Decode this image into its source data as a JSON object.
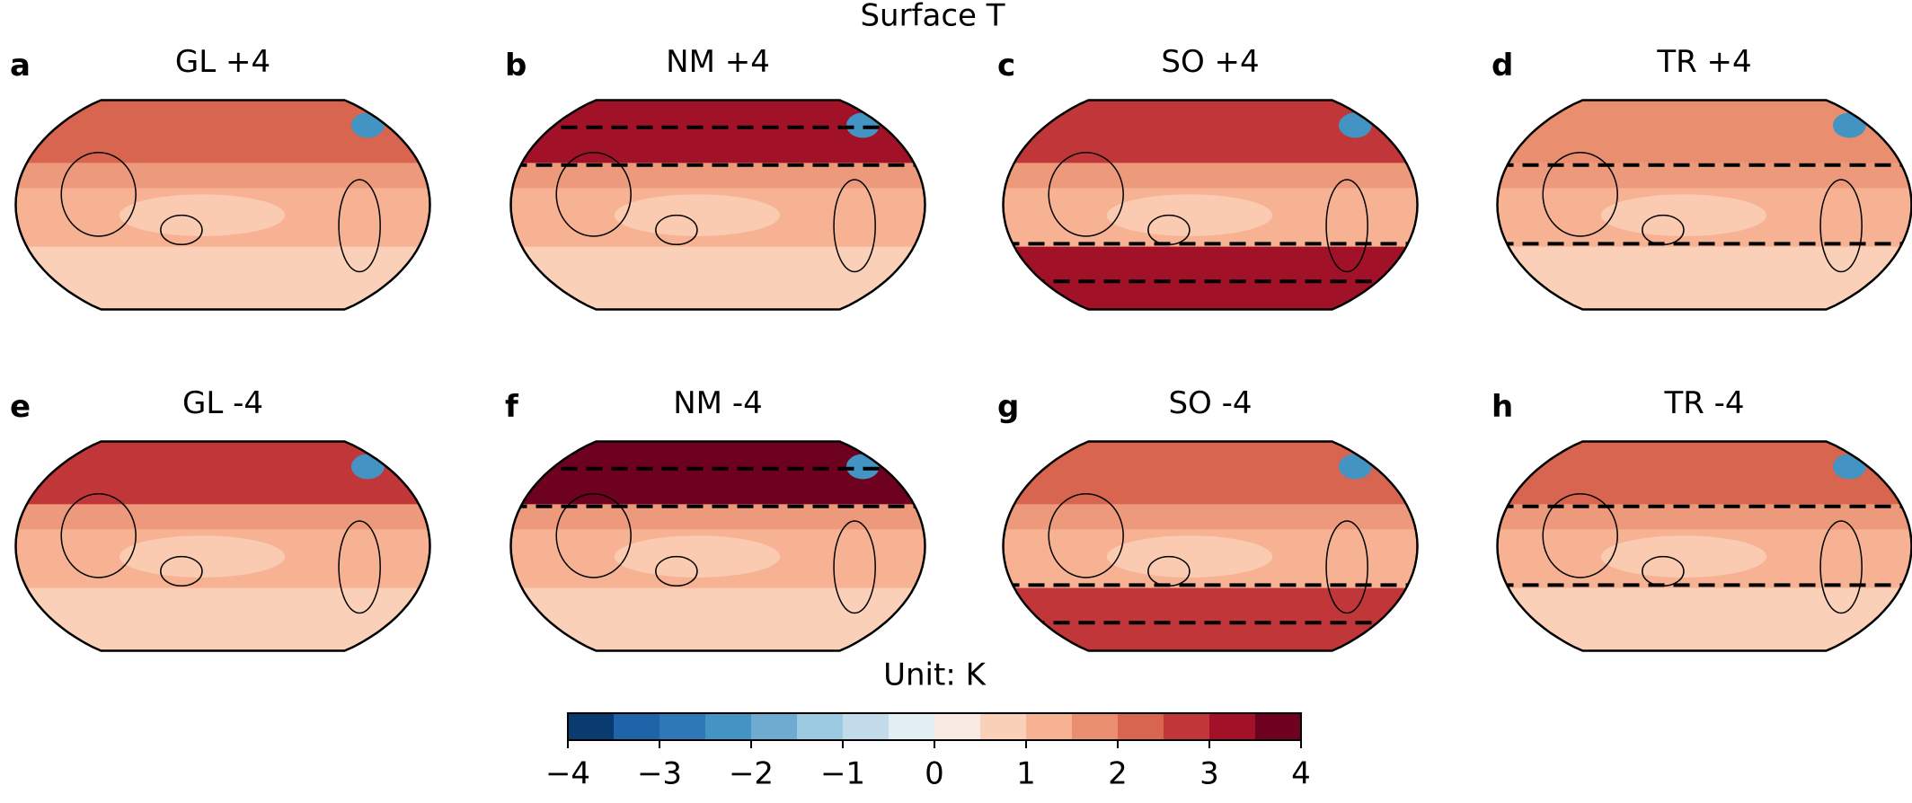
{
  "chart_data": {
    "type": "colorbar",
    "title": "Surface T",
    "panels": [
      {
        "letter": "a",
        "title": "GL +4"
      },
      {
        "letter": "b",
        "title": "NM +4"
      },
      {
        "letter": "c",
        "title": "SO +4"
      },
      {
        "letter": "d",
        "title": "TR +4"
      },
      {
        "letter": "e",
        "title": "GL -4"
      },
      {
        "letter": "f",
        "title": "NM -4"
      },
      {
        "letter": "g",
        "title": "SO -4"
      },
      {
        "letter": "h",
        "title": "TR -4"
      }
    ],
    "colorbar_label": "Unit: K",
    "levels": [
      -4,
      -3.5,
      -3,
      -2.5,
      -2,
      -1.5,
      -1,
      -0.5,
      0,
      0.5,
      1,
      1.5,
      2,
      2.5,
      3,
      3.5,
      4
    ],
    "colors": [
      "#0a3b70",
      "#1f63a8",
      "#2e78b5",
      "#4393c3",
      "#6fabd0",
      "#9ccae1",
      "#c3dceb",
      "#e3eef5",
      "#f9ebe3",
      "#fbd0b9",
      "#f6b293",
      "#ea8e70",
      "#d8654f",
      "#c13639",
      "#a11228",
      "#6d011f"
    ],
    "xlim": [
      -4,
      4
    ],
    "xticks": [
      {
        "value": -4,
        "label": "−4"
      },
      {
        "value": -3,
        "label": "−3"
      },
      {
        "value": -2,
        "label": "−2"
      },
      {
        "value": -1,
        "label": "−1"
      },
      0,
      1,
      2,
      3,
      4
    ]
  }
}
